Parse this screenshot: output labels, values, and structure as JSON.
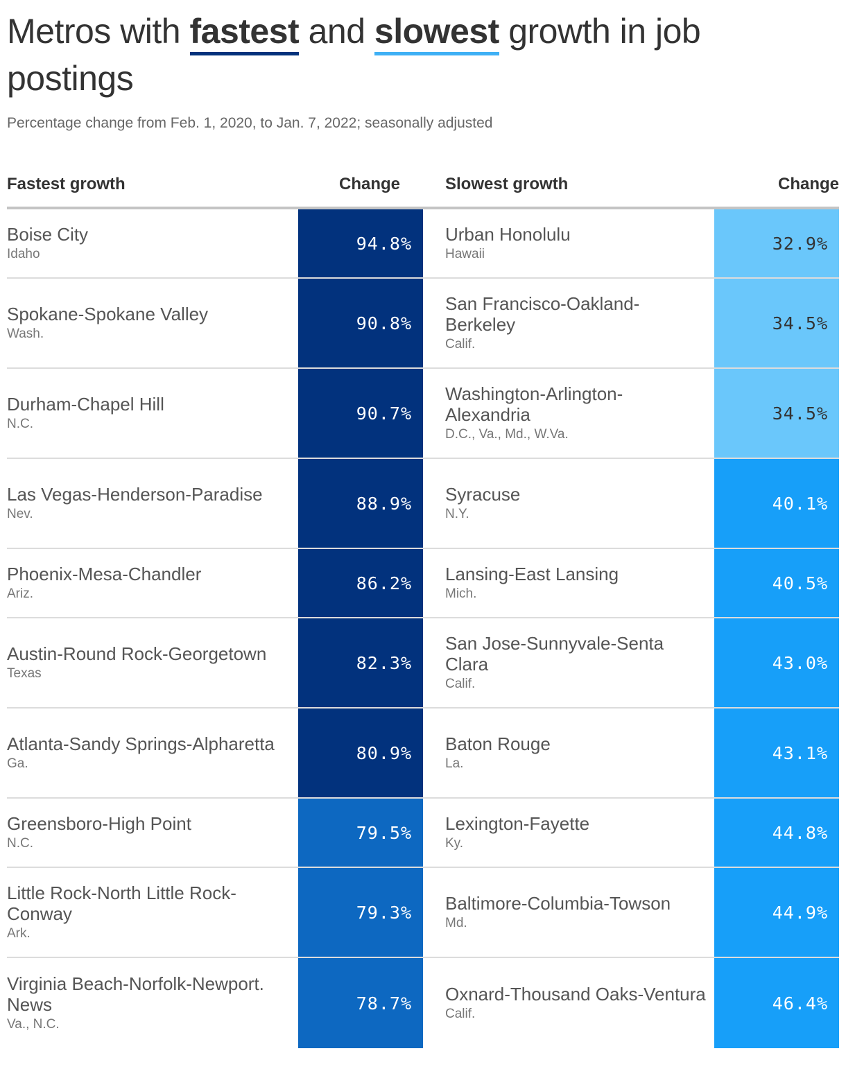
{
  "title": {
    "part1": "Metros with ",
    "fast_word": "fastest",
    "part2": " and ",
    "slow_word": "slowest",
    "part3": " growth in job postings"
  },
  "subtitle": "Percentage change from Feb. 1, 2020, to Jan. 7, 2022; seasonally adjusted",
  "colors": {
    "fast_highlight": "#04327c",
    "slow_highlight": "#3fb0f5"
  },
  "chart_data": {
    "type": "table",
    "columns": [
      "Fastest growth",
      "Change",
      "Slowest growth",
      "Change"
    ],
    "fastest": [
      {
        "metro": "Boise City",
        "state": "Idaho",
        "value": "94.8%",
        "color": "#02327d",
        "text": "#ffffff"
      },
      {
        "metro": "Spokane-Spokane Valley",
        "state": "Wash.",
        "value": "90.8%",
        "color": "#02327d",
        "text": "#ffffff"
      },
      {
        "metro": "Durham-Chapel Hill",
        "state": "N.C.",
        "value": "90.7%",
        "color": "#02327d",
        "text": "#ffffff"
      },
      {
        "metro": "Las Vegas-Henderson-Paradise",
        "state": "Nev.",
        "value": "88.9%",
        "color": "#02327d",
        "text": "#ffffff"
      },
      {
        "metro": "Phoenix-Mesa-Chandler",
        "state": "Ariz.",
        "value": "86.2%",
        "color": "#02327d",
        "text": "#ffffff"
      },
      {
        "metro": "Austin-Round Rock-Georgetown",
        "state": "Texas",
        "value": "82.3%",
        "color": "#02327d",
        "text": "#ffffff"
      },
      {
        "metro": "Atlanta-Sandy Springs-Alpharetta",
        "state": "Ga.",
        "value": "80.9%",
        "color": "#02327d",
        "text": "#ffffff"
      },
      {
        "metro": "Greensboro-High Point",
        "state": "N.C.",
        "value": "79.5%",
        "color": "#0d68c1",
        "text": "#ffffff"
      },
      {
        "metro": "Little Rock-North Little Rock-Conway",
        "state": "Ark.",
        "value": "79.3%",
        "color": "#0d68c1",
        "text": "#ffffff"
      },
      {
        "metro": "Virginia Beach-Norfolk-Newport. News",
        "state": "Va., N.C.",
        "value": "78.7%",
        "color": "#0d68c1",
        "text": "#ffffff"
      }
    ],
    "slowest": [
      {
        "metro": "Urban Honolulu",
        "state": "Hawaii",
        "value": "32.9%",
        "color": "#6ac7fb",
        "text": "#333333"
      },
      {
        "metro": "San Francisco-Oakland-Berkeley",
        "state": "Calif.",
        "value": "34.5%",
        "color": "#6ac7fb",
        "text": "#333333"
      },
      {
        "metro": "Washington-Arlington-Alexandria",
        "state": "D.C., Va., Md., W.Va.",
        "value": "34.5%",
        "color": "#6ac7fb",
        "text": "#333333"
      },
      {
        "metro": "Syracuse",
        "state": "N.Y.",
        "value": "40.1%",
        "color": "#179ff9",
        "text": "#ffffff"
      },
      {
        "metro": "Lansing-East Lansing",
        "state": "Mich.",
        "value": "40.5%",
        "color": "#179ff9",
        "text": "#ffffff"
      },
      {
        "metro": "San Jose-Sunnyvale-Senta Clara",
        "state": "Calif.",
        "value": "43.0%",
        "color": "#179ff9",
        "text": "#ffffff"
      },
      {
        "metro": "Baton Rouge",
        "state": "La.",
        "value": "43.1%",
        "color": "#179ff9",
        "text": "#ffffff"
      },
      {
        "metro": "Lexington-Fayette",
        "state": "Ky.",
        "value": "44.8%",
        "color": "#179ff9",
        "text": "#ffffff"
      },
      {
        "metro": "Baltimore-Columbia-Towson",
        "state": "Md.",
        "value": "44.9%",
        "color": "#179ff9",
        "text": "#ffffff"
      },
      {
        "metro": "Oxnard-Thousand Oaks-Ventura",
        "state": "Calif.",
        "value": "46.4%",
        "color": "#179ff9",
        "text": "#ffffff"
      }
    ]
  }
}
